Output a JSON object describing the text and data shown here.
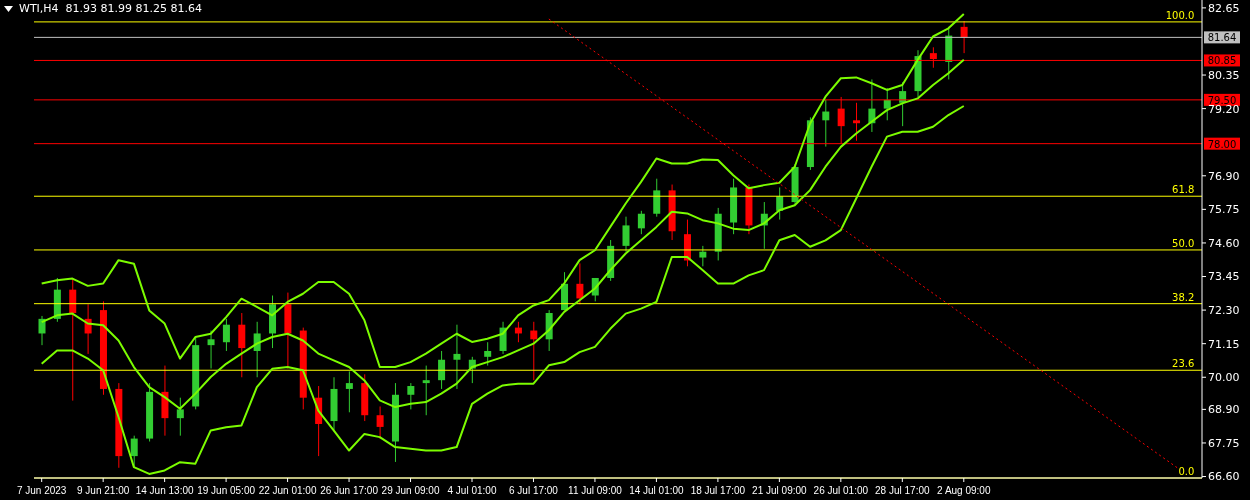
{
  "chart_data": {
    "type": "candlestick",
    "title": "WTI,H4  81.93 81.99 81.25 81.64",
    "categories": [
      "7 Jun 2023",
      null,
      null,
      null,
      "9 Jun 21:00",
      null,
      null,
      null,
      "14 Jun 13:00",
      null,
      null,
      null,
      "19 Jun 05:00",
      null,
      null,
      null,
      "22 Jun 01:00",
      null,
      null,
      null,
      "26 Jun 17:00",
      null,
      null,
      null,
      "29 Jun 09:00",
      null,
      null,
      null,
      "4 Jul 01:00",
      null,
      null,
      null,
      "6 Jul 17:00",
      null,
      null,
      null,
      "11 Jul 09:00",
      null,
      null,
      null,
      "14 Jul 01:00",
      null,
      null,
      null,
      "18 Jul 17:00",
      null,
      null,
      null,
      "21 Jul 09:00",
      null,
      null,
      null,
      "26 Jul 01:00",
      null,
      null,
      null,
      "28 Jul 17:00",
      null,
      null,
      null,
      "2 Aug 09:00",
      null,
      null,
      null,
      null,
      null,
      null,
      null,
      null,
      null,
      null,
      null,
      null,
      null,
      null,
      null
    ],
    "ohlc": [
      [
        71.5,
        72.1,
        71.1,
        72.0
      ],
      [
        72.0,
        73.4,
        71.9,
        73.0
      ],
      [
        73.0,
        73.4,
        69.2,
        72.2
      ],
      [
        72.0,
        72.5,
        70.8,
        71.5
      ],
      [
        72.3,
        72.6,
        69.4,
        69.6
      ],
      [
        69.6,
        69.8,
        66.9,
        67.3
      ],
      [
        67.3,
        68.0,
        66.9,
        67.9
      ],
      [
        67.9,
        69.8,
        67.8,
        69.5
      ],
      [
        69.5,
        70.4,
        68.0,
        68.6
      ],
      [
        68.6,
        69.3,
        68.0,
        68.9
      ],
      [
        69.0,
        71.4,
        68.9,
        71.1
      ],
      [
        71.1,
        71.6,
        70.3,
        71.3
      ],
      [
        71.2,
        72.0,
        70.9,
        71.8
      ],
      [
        71.8,
        72.2,
        70.0,
        71.0
      ],
      [
        70.9,
        71.9,
        70.0,
        71.5
      ],
      [
        71.5,
        72.8,
        71.0,
        72.5
      ],
      [
        72.5,
        72.9,
        70.3,
        71.5
      ],
      [
        71.6,
        71.7,
        68.9,
        69.3
      ],
      [
        69.3,
        69.7,
        67.3,
        68.4
      ],
      [
        68.5,
        70.0,
        68.2,
        69.6
      ],
      [
        69.6,
        70.2,
        68.8,
        69.8
      ],
      [
        69.8,
        70.1,
        68.5,
        68.7
      ],
      [
        68.7,
        69.0,
        67.9,
        68.3
      ],
      [
        67.8,
        69.8,
        67.1,
        69.4
      ],
      [
        69.4,
        69.8,
        68.9,
        69.7
      ],
      [
        69.8,
        70.4,
        68.7,
        69.9
      ],
      [
        69.9,
        70.9,
        69.6,
        70.6
      ],
      [
        70.6,
        71.8,
        69.6,
        70.8
      ],
      [
        70.3,
        70.7,
        69.8,
        70.6
      ],
      [
        70.7,
        71.2,
        70.4,
        70.9
      ],
      [
        70.9,
        71.9,
        70.8,
        71.7
      ],
      [
        71.7,
        71.9,
        71.2,
        71.5
      ],
      [
        71.6,
        71.9,
        69.9,
        71.3
      ],
      [
        71.3,
        72.3,
        70.9,
        72.2
      ],
      [
        72.3,
        73.6,
        72.3,
        73.2
      ],
      [
        73.2,
        73.9,
        72.5,
        72.7
      ],
      [
        72.8,
        73.4,
        72.6,
        73.4
      ],
      [
        73.4,
        74.7,
        73.3,
        74.5
      ],
      [
        74.5,
        75.5,
        74.3,
        75.2
      ],
      [
        75.1,
        75.7,
        74.9,
        75.6
      ],
      [
        75.6,
        76.8,
        75.5,
        76.4
      ],
      [
        76.4,
        76.6,
        74.7,
        75.0
      ],
      [
        74.9,
        75.4,
        73.8,
        74.0
      ],
      [
        74.1,
        74.5,
        73.8,
        74.3
      ],
      [
        74.3,
        75.8,
        74.0,
        75.6
      ],
      [
        75.3,
        76.8,
        74.9,
        76.5
      ],
      [
        76.5,
        76.6,
        74.9,
        75.2
      ],
      [
        75.2,
        76.0,
        74.4,
        75.6
      ],
      [
        75.7,
        76.5,
        75.4,
        76.2
      ],
      [
        76.0,
        77.3,
        75.9,
        77.2
      ],
      [
        77.2,
        78.9,
        77.1,
        78.8
      ],
      [
        78.8,
        79.5,
        77.9,
        79.1
      ],
      [
        79.2,
        79.6,
        78.0,
        78.6
      ],
      [
        78.8,
        79.4,
        78.1,
        78.7
      ],
      [
        78.7,
        80.2,
        78.4,
        79.2
      ],
      [
        79.2,
        79.9,
        78.8,
        79.5
      ],
      [
        79.4,
        80.1,
        78.6,
        79.8
      ],
      [
        79.8,
        81.2,
        79.6,
        81.0
      ],
      [
        81.1,
        81.3,
        80.6,
        80.9
      ],
      [
        80.8,
        82.0,
        80.2,
        81.7
      ],
      [
        82.0,
        82.2,
        81.1,
        81.64
      ],
      null,
      null,
      null,
      null,
      null,
      null,
      null,
      null,
      null,
      null,
      null,
      null,
      null,
      null,
      null
    ],
    "colors": [
      "#32cd32",
      "#32cd32",
      "#ff0000",
      "#ff0000",
      "#ff0000",
      "#ff0000",
      "#32cd32",
      "#32cd32",
      "#ff0000",
      "#32cd32",
      "#32cd32",
      "#32cd32",
      "#32cd32",
      "#ff0000",
      "#32cd32",
      "#32cd32",
      "#ff0000",
      "#ff0000",
      "#ff0000",
      "#32cd32",
      "#32cd32",
      "#ff0000",
      "#ff0000",
      "#32cd32",
      "#32cd32",
      "#32cd32",
      "#32cd32",
      "#32cd32",
      "#32cd32",
      "#32cd32",
      "#32cd32",
      "#ff0000",
      "#ff0000",
      "#32cd32",
      "#32cd32",
      "#ff0000",
      "#32cd32",
      "#32cd32",
      "#32cd32",
      "#32cd32",
      "#32cd32",
      "#ff0000",
      "#ff0000",
      "#32cd32",
      "#32cd32",
      "#32cd32",
      "#ff0000",
      "#32cd32",
      "#32cd32",
      "#32cd32",
      "#32cd32",
      "#32cd32",
      "#ff0000",
      "#ff0000",
      "#32cd32",
      "#32cd32",
      "#32cd32",
      "#32cd32",
      "#ff0000",
      "#32cd32",
      "#ff0000",
      null,
      null,
      null,
      null,
      null,
      null,
      null,
      null,
      null,
      null,
      null,
      null,
      null,
      null,
      null
    ],
    "series": [
      {
        "type": "line",
        "color": "#7cfc00",
        "values": [
          73.21,
          73.32,
          73.38,
          73.13,
          73.21,
          74.01,
          73.89,
          72.29,
          71.84,
          70.64,
          71.38,
          71.49,
          72.06,
          72.69,
          72.41,
          72.12,
          72.58,
          72.86,
          73.26,
          73.26,
          72.86,
          71.95,
          70.35,
          70.35,
          70.52,
          70.81,
          71.15,
          71.49,
          71.21,
          71.32,
          71.49,
          72.12,
          72.46,
          72.64,
          73.21,
          74.01,
          74.35,
          75.15,
          75.95,
          76.69,
          77.49,
          77.32,
          77.32,
          77.46,
          77.44,
          76.92,
          76.47,
          76.58,
          76.66,
          77.21,
          78.69,
          79.61,
          80.24,
          80.27,
          80.07,
          79.84,
          80.01,
          80.87,
          81.67,
          81.95,
          82.44,
          null,
          null,
          null,
          null,
          null,
          null,
          null,
          null,
          null,
          null,
          null,
          null,
          null,
          null,
          null
        ]
      },
      {
        "type": "line",
        "color": "#7cfc00",
        "values": [
          71.89,
          72.12,
          72.18,
          71.84,
          71.78,
          71.26,
          70.35,
          69.66,
          69.32,
          68.92,
          69.44,
          70.01,
          70.46,
          70.81,
          71.15,
          71.38,
          71.49,
          71.26,
          70.81,
          70.58,
          70.35,
          69.89,
          69.21,
          68.98,
          69.09,
          69.15,
          69.44,
          69.78,
          70.35,
          70.52,
          70.69,
          70.92,
          71.15,
          71.61,
          72.24,
          72.64,
          73.04,
          73.67,
          74.24,
          74.69,
          75.15,
          75.67,
          75.61,
          75.38,
          75.27,
          75.09,
          75.04,
          75.27,
          75.72,
          75.89,
          76.41,
          77.21,
          77.89,
          78.35,
          78.75,
          79.15,
          79.38,
          79.55,
          80.01,
          80.41,
          80.87,
          null,
          null,
          null,
          null,
          null,
          null,
          null,
          null,
          null,
          null,
          null,
          null,
          null,
          null,
          null
        ]
      },
      {
        "type": "line",
        "color": "#7cfc00",
        "values": [
          70.46,
          70.92,
          70.92,
          70.64,
          70.24,
          68.64,
          66.92,
          66.69,
          66.81,
          67.09,
          67.04,
          68.18,
          68.29,
          68.35,
          69.66,
          70.29,
          70.35,
          70.24,
          68.86,
          68.18,
          67.49,
          68.06,
          67.95,
          67.61,
          67.55,
          67.49,
          67.49,
          67.61,
          69.09,
          69.44,
          69.72,
          69.78,
          69.78,
          70.41,
          70.52,
          70.86,
          71.04,
          71.66,
          72.18,
          72.35,
          72.58,
          74.12,
          74.12,
          73.67,
          73.21,
          73.21,
          73.49,
          73.67,
          74.69,
          74.87,
          74.47,
          74.69,
          75.04,
          76.12,
          77.21,
          78.24,
          78.41,
          78.41,
          78.58,
          78.98,
          79.29,
          null,
          null,
          null,
          null,
          null,
          null,
          null,
          null,
          null,
          null,
          null,
          null,
          null,
          null,
          null
        ]
      },
      {
        "type": "line",
        "color": "#ff0000",
        "line_style": "dotted",
        "values": [
          null,
          null,
          null,
          null,
          null,
          null,
          null,
          null,
          null,
          null,
          null,
          null,
          null,
          null,
          null,
          null,
          null,
          null,
          null,
          null,
          null,
          null,
          null,
          null,
          null,
          null,
          null,
          null,
          null,
          null,
          null,
          null,
          null,
          82.27,
          null,
          null,
          null,
          null,
          null,
          null,
          null,
          null,
          null,
          null,
          null,
          null,
          null,
          null,
          null,
          null,
          null,
          null,
          null,
          null,
          null,
          null,
          null,
          null,
          null,
          null,
          null,
          null,
          null,
          null,
          null,
          null,
          null,
          null,
          null,
          null,
          null,
          null,
          null,
          null,
          66.86,
          null
        ]
      }
    ],
    "ylim": [
      66.55,
      82.92
    ],
    "yticks": [
      {
        "value": 66.6,
        "label": "66.60"
      },
      67.75,
      {
        "value": 68.9,
        "label": "68.90"
      },
      {
        "value": 70,
        "label": "70.00"
      },
      71.15,
      {
        "value": 72.3,
        "label": "72.30"
      },
      73.45,
      {
        "value": 74.6,
        "label": "74.60"
      },
      75.75,
      {
        "value": 76.9,
        "label": "76.90"
      },
      {
        "value": 79.2,
        "label": "79.20"
      },
      80.35,
      82.65
    ],
    "ref_lines": [
      {
        "axis": "y",
        "value": 81.64,
        "label": "81.64",
        "color": "#c0c0c0"
      },
      {
        "axis": "y",
        "value": 80.85,
        "label": "80.85",
        "color": "#ff0000"
      },
      {
        "axis": "y",
        "value": 79.5,
        "label": "79.50",
        "color": "#ff0000"
      },
      {
        "axis": "y",
        "value": 78.0,
        "label": "78.00",
        "color": "#ff0000"
      },
      {
        "axis": "y",
        "value": 82.17,
        "color": "#ffff00"
      },
      {
        "axis": "y",
        "value": 76.2,
        "color": "#ffff00"
      },
      {
        "axis": "y",
        "value": 74.36,
        "color": "#ffff00"
      },
      {
        "axis": "y",
        "value": 72.52,
        "color": "#ffff00"
      },
      {
        "axis": "y",
        "value": 70.24,
        "color": "#ffff00"
      },
      {
        "axis": "y",
        "value": 66.55,
        "color": "#ffff00"
      }
    ],
    "annotations": [
      {
        "text": "100.0",
        "y": 82.17
      },
      {
        "text": "61.8",
        "y": 76.2
      },
      {
        "text": "50.0",
        "y": 74.36
      },
      {
        "text": "38.2",
        "y": 72.52
      },
      {
        "text": "23.6",
        "y": 70.24
      },
      {
        "text": "0.0",
        "y": 66.55
      }
    ],
    "marker": "none"
  }
}
